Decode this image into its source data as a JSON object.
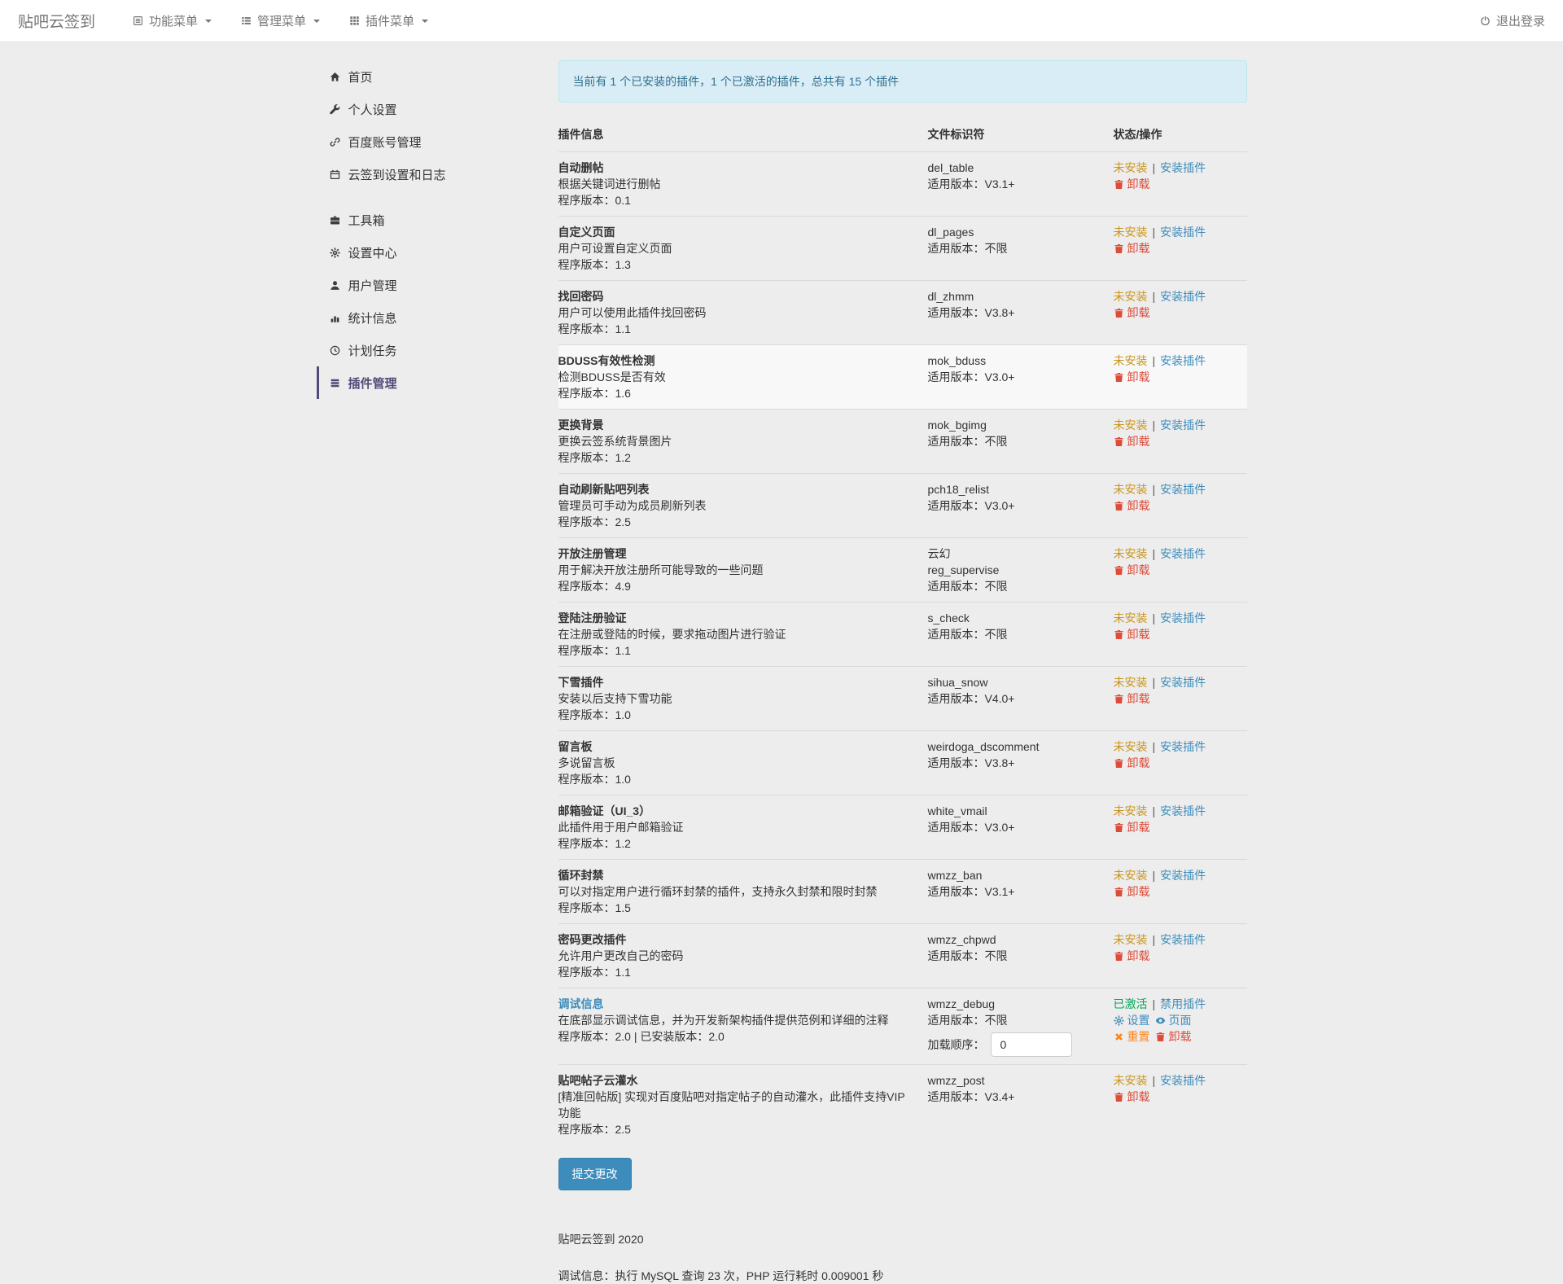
{
  "navbar": {
    "brand": "贴吧云签到",
    "menus": [
      {
        "icon": "panel-list",
        "label": "功能菜单"
      },
      {
        "icon": "th-list",
        "label": "管理菜单"
      },
      {
        "icon": "th-grid",
        "label": "插件菜单"
      }
    ],
    "logout": "退出登录"
  },
  "sidebar": {
    "groups": [
      {
        "items": [
          {
            "icon": "home",
            "label": "首页"
          },
          {
            "icon": "wrench",
            "label": "个人设置"
          },
          {
            "icon": "link",
            "label": "百度账号管理"
          },
          {
            "icon": "calendar",
            "label": "云签到设置和日志"
          }
        ]
      },
      {
        "items": [
          {
            "icon": "briefcase",
            "label": "工具箱"
          },
          {
            "icon": "gear",
            "label": "设置中心"
          },
          {
            "icon": "user",
            "label": "用户管理"
          },
          {
            "icon": "chart",
            "label": "统计信息"
          },
          {
            "icon": "clock",
            "label": "计划任务"
          },
          {
            "icon": "stack",
            "label": "插件管理",
            "active": true
          }
        ]
      }
    ]
  },
  "main": {
    "alert": "当前有 1 个已安装的插件，1 个已激活的插件，总共有 15 个插件",
    "table": {
      "headers": [
        "插件信息",
        "文件标识符",
        "状态/操作"
      ],
      "rows": [
        {
          "name": "自动删帖",
          "desc": "根据关键词进行删帖",
          "version": "程序版本：0.1",
          "id_lines": [
            "del_table"
          ],
          "compat": "适用版本：V3.1+",
          "status": "not_installed"
        },
        {
          "name": "自定义页面",
          "desc": "用户可设置自定义页面",
          "version": "程序版本：1.3",
          "id_lines": [
            "dl_pages"
          ],
          "compat": "适用版本：不限",
          "status": "not_installed"
        },
        {
          "name": "找回密码",
          "desc": "用户可以使用此插件找回密码",
          "version": "程序版本：1.1",
          "id_lines": [
            "dl_zhmm"
          ],
          "compat": "适用版本：V3.8+",
          "status": "not_installed"
        },
        {
          "name": "BDUSS有效性检测",
          "desc": "检测BDUSS是否有效",
          "version": "程序版本：1.6",
          "id_lines": [
            "mok_bduss"
          ],
          "compat": "适用版本：V3.0+",
          "status": "not_installed",
          "highlighted": true
        },
        {
          "name": "更换背景",
          "desc": "更换云签系统背景图片",
          "version": "程序版本：1.2",
          "id_lines": [
            "mok_bgimg"
          ],
          "compat": "适用版本：不限",
          "status": "not_installed"
        },
        {
          "name": "自动刷新贴吧列表",
          "desc": "管理员可手动为成员刷新列表",
          "version": "程序版本：2.5",
          "id_lines": [
            "pch18_relist"
          ],
          "compat": "适用版本：V3.0+",
          "status": "not_installed"
        },
        {
          "name": "开放注册管理",
          "desc": "用于解决开放注册所可能导致的一些问题",
          "version": "程序版本：4.9",
          "id_lines": [
            "云幻",
            "reg_supervise"
          ],
          "compat": "适用版本：不限",
          "status": "not_installed"
        },
        {
          "name": "登陆注册验证",
          "desc": "在注册或登陆的时候，要求拖动图片进行验证",
          "version": "程序版本：1.1",
          "id_lines": [
            "s_check"
          ],
          "compat": "适用版本：不限",
          "status": "not_installed"
        },
        {
          "name": "下雪插件",
          "desc": "安装以后支持下雪功能",
          "version": "程序版本：1.0",
          "id_lines": [
            "sihua_snow"
          ],
          "compat": "适用版本：V4.0+",
          "status": "not_installed"
        },
        {
          "name": "留言板",
          "desc": "多说留言板",
          "version": "程序版本：1.0",
          "id_lines": [
            "weirdoga_dscomment"
          ],
          "compat": "适用版本：V3.8+",
          "status": "not_installed"
        },
        {
          "name": "邮箱验证（UI_3）",
          "desc": "此插件用于用户邮箱验证",
          "version": "程序版本：1.2",
          "id_lines": [
            "white_vmail"
          ],
          "compat": "适用版本：V3.0+",
          "status": "not_installed"
        },
        {
          "name": "循环封禁",
          "desc": "可以对指定用户进行循环封禁的插件，支持永久封禁和限时封禁",
          "version": "程序版本：1.5",
          "id_lines": [
            "wmzz_ban"
          ],
          "compat": "适用版本：V3.1+",
          "status": "not_installed"
        },
        {
          "name": "密码更改插件",
          "desc": "允许用户更改自己的密码",
          "version": "程序版本：1.1",
          "id_lines": [
            "wmzz_chpwd"
          ],
          "compat": "适用版本：不限",
          "status": "not_installed"
        },
        {
          "name": "调试信息",
          "desc": "在底部显示调试信息，并为开发新架构插件提供范例和详细的注释",
          "version": "程序版本：2.0 | 已安装版本：2.0",
          "id_lines": [
            "wmzz_debug"
          ],
          "compat": "适用版本：不限",
          "status": "active",
          "link": true,
          "load_order": true
        },
        {
          "name": "贴吧帖子云灌水",
          "desc": "[精准回帖版] 实现对百度贴吧对指定帖子的自动灌水，此插件支持VIP功能",
          "version": "程序版本：2.5",
          "id_lines": [
            "wmzz_post"
          ],
          "compat": "适用版本：V3.4+",
          "status": "not_installed"
        }
      ]
    },
    "submit_label": "提交更改"
  },
  "actions": {
    "status_not_installed": "未安装",
    "status_active": "已激活",
    "separator": "|",
    "install": "安装插件",
    "disable": "禁用插件",
    "uninstall": "卸载",
    "settings": "设置",
    "page": "页面",
    "reset": "重置",
    "load_order_label": "加载顺序：",
    "load_order_value": "0"
  },
  "footer": {
    "copyright": "贴吧云签到 2020",
    "debug": "调试信息：执行 MySQL 查询 23 次，PHP 运行耗时 0.009001 秒"
  },
  "colors": {
    "link": "#3c8dbc",
    "active_purple": "#514a78",
    "warning": "#c9951c",
    "danger": "#dd4b39",
    "success": "#00a65a",
    "reset_orange": "#ff851b",
    "alert_bg": "#d9edf7",
    "alert_text": "#31708f",
    "button_bg": "#3c8dbc"
  }
}
